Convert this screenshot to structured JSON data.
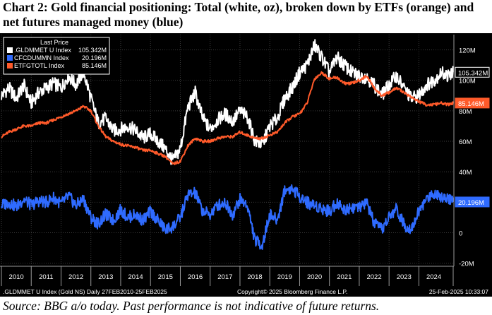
{
  "header": {
    "title": "Chart 2: Gold financial positioning: Total (white, oz), broken down by ETFs (orange) and net futures managed money (blue)"
  },
  "footer": {
    "source": "Source: BBG a/o today. Past performance is not indicative of future returns."
  },
  "chart_data": {
    "type": "line",
    "legend": {
      "heading": "Last Price",
      "entries": [
        {
          "name": ".GLDMMET U Index",
          "value": "105.342M"
        },
        {
          "name": "CFCDUMMN Index",
          "value": "20.196M"
        },
        {
          "name": "ETFGTOTL Index",
          "value": "85.146M"
        }
      ],
      "placement": "top-left"
    },
    "last_value_tags": [
      "105.342M",
      "85.146M",
      "20.196M"
    ],
    "yaxis": {
      "ticks": [
        "120M",
        "100M",
        "80M",
        "60M",
        "40M",
        "20M",
        "0",
        "-20M"
      ],
      "tick_values": [
        120,
        100,
        80,
        60,
        40,
        20,
        0,
        -20
      ],
      "ylim": [
        -22,
        130
      ],
      "position": "right"
    },
    "xaxis": {
      "ticks": [
        "2010",
        "2011",
        "2012",
        "2013",
        "2014",
        "2015",
        "2016",
        "2017",
        "2018",
        "2019",
        "2020",
        "2021",
        "2022",
        "2023",
        "2024"
      ],
      "xlim": [
        2010.0,
        2025.15
      ]
    },
    "grid": true,
    "bottom_left_text": ".GLDMMET U Index (Gold NS)  Daily 27FEB2010-25FEB2025",
    "bottom_center_text": "Copyright© 2025 Bloomberg Finance L.P.",
    "bottom_right_text": "25-Feb-2025 10:33:07",
    "colors": {
      "total": "#ffffff",
      "etf": "#ff5a2a",
      "futures": "#2f6bff",
      "background": "#000000",
      "grid": "#3a3a3a"
    },
    "series": [
      {
        "name": ".GLDMMET U Index",
        "color": "#ffffff",
        "x": [
          2010.0,
          2010.25,
          2010.5,
          2010.75,
          2011.0,
          2011.25,
          2011.5,
          2011.75,
          2012.0,
          2012.25,
          2012.5,
          2012.75,
          2013.0,
          2013.25,
          2013.5,
          2013.75,
          2014.0,
          2014.25,
          2014.5,
          2014.75,
          2015.0,
          2015.25,
          2015.5,
          2015.75,
          2016.0,
          2016.25,
          2016.5,
          2016.75,
          2017.0,
          2017.25,
          2017.5,
          2017.75,
          2018.0,
          2018.25,
          2018.5,
          2018.75,
          2019.0,
          2019.25,
          2019.5,
          2019.75,
          2020.0,
          2020.25,
          2020.5,
          2020.75,
          2021.0,
          2021.25,
          2021.5,
          2021.75,
          2022.0,
          2022.25,
          2022.5,
          2022.75,
          2023.0,
          2023.25,
          2023.5,
          2023.75,
          2024.0,
          2024.25,
          2024.5,
          2024.75,
          2025.0,
          2025.15
        ],
        "values": [
          90,
          95,
          88,
          97,
          85,
          92,
          95,
          98,
          95,
          103,
          97,
          106,
          88,
          72,
          75,
          67,
          68,
          70,
          67,
          62,
          65,
          60,
          55,
          47,
          55,
          82,
          92,
          75,
          68,
          74,
          78,
          73,
          80,
          76,
          60,
          58,
          70,
          75,
          88,
          95,
          105,
          110,
          123,
          115,
          105,
          115,
          110,
          105,
          103,
          102,
          97,
          90,
          97,
          103,
          95,
          88,
          90,
          97,
          100,
          105,
          103,
          105.3
        ]
      },
      {
        "name": "ETFGTOTL Index",
        "color": "#ff5a2a",
        "x": [
          2010.0,
          2010.25,
          2010.5,
          2010.75,
          2011.0,
          2011.25,
          2011.5,
          2011.75,
          2012.0,
          2012.25,
          2012.5,
          2012.75,
          2013.0,
          2013.25,
          2013.5,
          2013.75,
          2014.0,
          2014.25,
          2014.5,
          2014.75,
          2015.0,
          2015.25,
          2015.5,
          2015.75,
          2016.0,
          2016.25,
          2016.5,
          2016.75,
          2017.0,
          2017.25,
          2017.5,
          2017.75,
          2018.0,
          2018.25,
          2018.5,
          2018.75,
          2019.0,
          2019.25,
          2019.5,
          2019.75,
          2020.0,
          2020.25,
          2020.5,
          2020.75,
          2021.0,
          2021.25,
          2021.5,
          2021.75,
          2022.0,
          2022.25,
          2022.5,
          2022.75,
          2023.0,
          2023.25,
          2023.5,
          2023.75,
          2024.0,
          2024.25,
          2024.5,
          2024.75,
          2025.0,
          2025.15
        ],
        "values": [
          63,
          66,
          68,
          70,
          70,
          72,
          72,
          74,
          76,
          78,
          80,
          83,
          80,
          70,
          63,
          60,
          58,
          57,
          56,
          54,
          54,
          52,
          50,
          45,
          47,
          57,
          62,
          60,
          60,
          62,
          63,
          63,
          66,
          64,
          62,
          62,
          64,
          66,
          72,
          76,
          78,
          85,
          101,
          105,
          101,
          102,
          98,
          98,
          100,
          103,
          95,
          90,
          92,
          95,
          92,
          89,
          86,
          84,
          84,
          85,
          84,
          85.1
        ]
      },
      {
        "name": "CFCDUMMN Index",
        "color": "#2f6bff",
        "x": [
          2010.0,
          2010.25,
          2010.5,
          2010.75,
          2011.0,
          2011.25,
          2011.5,
          2011.75,
          2012.0,
          2012.25,
          2012.5,
          2012.75,
          2013.0,
          2013.25,
          2013.5,
          2013.75,
          2014.0,
          2014.25,
          2014.5,
          2014.75,
          2015.0,
          2015.25,
          2015.5,
          2015.75,
          2016.0,
          2016.25,
          2016.5,
          2016.75,
          2017.0,
          2017.25,
          2017.5,
          2017.75,
          2018.0,
          2018.25,
          2018.5,
          2018.75,
          2019.0,
          2019.25,
          2019.5,
          2019.75,
          2020.0,
          2020.25,
          2020.5,
          2020.75,
          2021.0,
          2021.25,
          2021.5,
          2021.75,
          2022.0,
          2022.25,
          2022.5,
          2022.75,
          2023.0,
          2023.25,
          2023.5,
          2023.75,
          2024.0,
          2024.25,
          2024.5,
          2024.75,
          2025.0,
          2025.15
        ],
        "values": [
          18,
          20,
          17,
          22,
          18,
          21,
          20,
          23,
          19,
          24,
          18,
          22,
          10,
          6,
          12,
          8,
          15,
          10,
          12,
          8,
          14,
          8,
          2,
          4,
          10,
          25,
          26,
          14,
          12,
          18,
          20,
          12,
          22,
          18,
          -5,
          -8,
          12,
          8,
          28,
          29,
          24,
          20,
          18,
          16,
          14,
          20,
          15,
          17,
          16,
          20,
          6,
          2,
          10,
          16,
          5,
          3,
          14,
          22,
          26,
          24,
          23,
          20.2
        ]
      }
    ]
  }
}
